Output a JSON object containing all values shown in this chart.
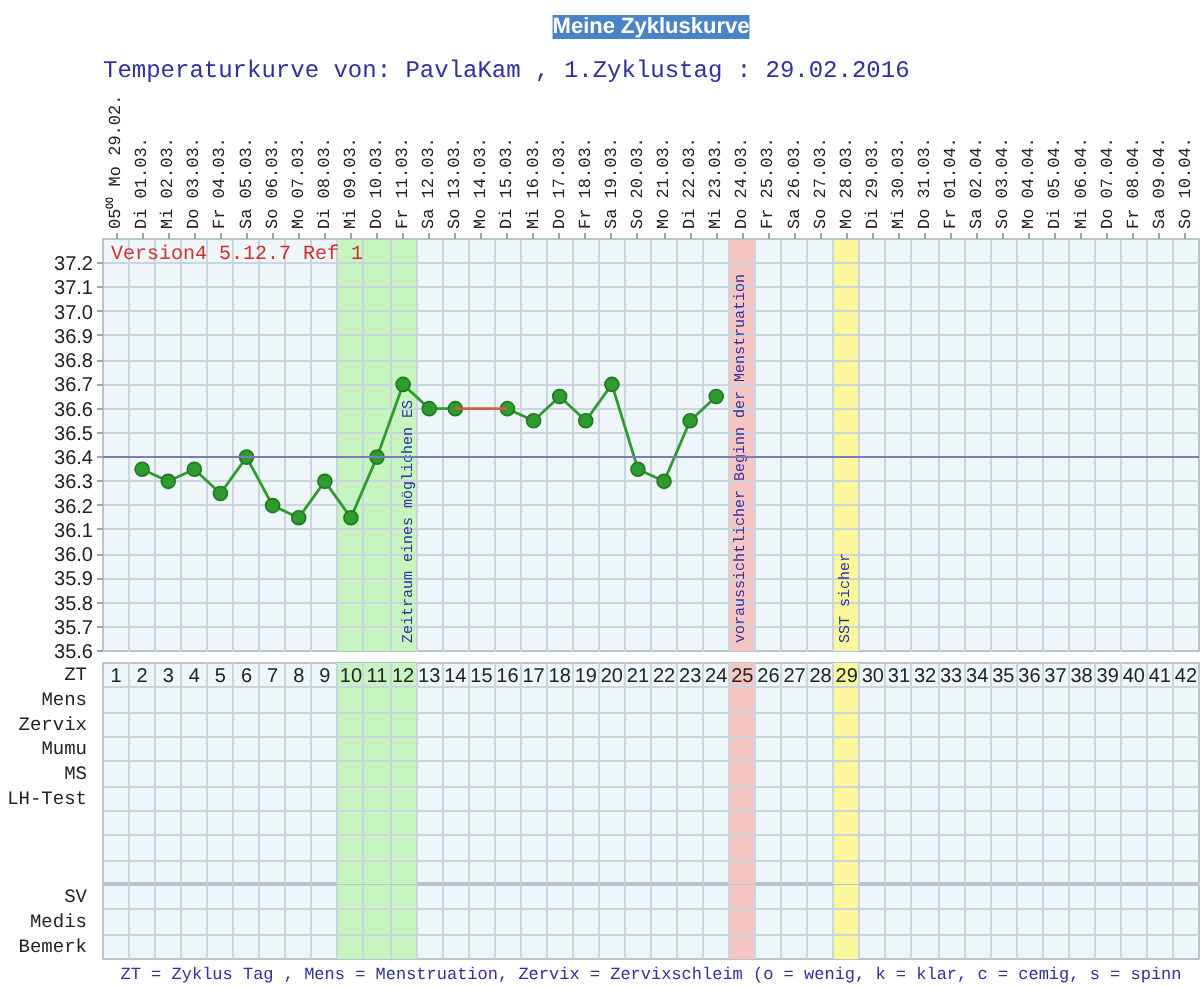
{
  "chart_data": [
    {
      "type": "line",
      "title": "Meine Zykluskurve",
      "subtitle": "Temperaturkurve von: PavlaKam , 1.Zyklustag : 29.02.2016",
      "categories": [
        "05⁰⁰ Mo 29.02.",
        "Di 01.03.",
        "Mi 02.03.",
        "Do 03.03.",
        "Fr 04.03.",
        "Sa 05.03.",
        "So 06.03.",
        "Mo 07.03.",
        "Di 08.03.",
        "Mi 09.03.",
        "Do 10.03.",
        "Fr 11.03.",
        "Sa 12.03.",
        "So 13.03.",
        "Mo 14.03.",
        "Di 15.03.",
        "Mi 16.03.",
        "Do 17.03.",
        "Fr 18.03.",
        "Sa 19.03.",
        "So 20.03.",
        "Mo 21.03.",
        "Di 22.03.",
        "Mi 23.03.",
        "Do 24.03.",
        "Fr 25.03.",
        "Sa 26.03.",
        "So 27.03.",
        "Mo 28.03.",
        "Di 29.03.",
        "Mi 30.03.",
        "Do 31.03.",
        "Fr 01.04.",
        "Sa 02.04.",
        "So 03.04.",
        "Mo 04.04.",
        "Di 05.04.",
        "Mi 06.04.",
        "Do 07.04.",
        "Fr 08.04.",
        "Sa 09.04.",
        "So 10.04."
      ],
      "series": [
        {
          "color": "#2f9a2f",
          "values": [
            null,
            36.35,
            36.3,
            36.35,
            36.25,
            36.4,
            36.2,
            36.15,
            36.3,
            36.15,
            36.4,
            36.7,
            36.6,
            36.6,
            null,
            36.6,
            36.55,
            36.65,
            36.55,
            36.7,
            36.35,
            36.3,
            36.55,
            36.65,
            null,
            null,
            null,
            null,
            null,
            null,
            null,
            null,
            null,
            null,
            null,
            null,
            null,
            null,
            null,
            null,
            null,
            null
          ]
        },
        {
          "type": "line",
          "color": "#d0603c",
          "x": [
            "So 13.03.",
            "Di 15.03."
          ],
          "values": [
            36.6,
            36.6
          ],
          "marker": "none"
        }
      ],
      "marker": "circle",
      "grid": true,
      "ylim": [
        35.6,
        37.3
      ],
      "yticks": [
        35.6,
        35.7,
        35.8,
        35.9,
        {
          "value": 36,
          "label": "36.0"
        },
        36.1,
        36.2,
        36.3,
        36.4,
        36.5,
        36.6,
        36.7,
        36.8,
        36.9,
        {
          "value": 37,
          "label": "37.0"
        },
        37.1,
        37.2
      ],
      "ref_lines": [
        {
          "axis": "y",
          "value": 36.4,
          "color": "#7a7cb8"
        }
      ],
      "bands": [
        {
          "axis": "x",
          "from": "Mi 09.03.",
          "to": "Fr 11.03.",
          "label": "Zeitraum eines möglichen ES",
          "color": "#c6f5c0"
        },
        {
          "axis": "x",
          "from": "Do 24.03.",
          "to": "Do 24.03.",
          "label": "voraussichtlicher Beginn der Menstruation",
          "color": "#f6c6c4"
        },
        {
          "axis": "x",
          "from": "Mo 28.03.",
          "to": "Mo 28.03.",
          "label": "SST sicher",
          "color": "#fbf79c"
        }
      ],
      "annotations": [
        "Version4 5.12.7 Ref 1"
      ]
    },
    {
      "type": "heatmap",
      "grid": true,
      "data_labels": true,
      "categories": [
        null,
        null,
        null,
        null,
        null,
        null,
        null,
        null,
        null,
        null,
        null,
        null,
        null,
        null,
        null,
        null,
        null,
        null,
        null,
        null,
        null,
        null,
        null,
        null,
        null,
        null,
        null,
        null,
        null,
        null,
        null,
        null,
        null,
        null,
        null,
        null,
        null,
        null,
        null,
        null,
        null,
        null
      ],
      "y_categories": [
        "ZT",
        "Mens",
        "Zervix",
        "Mumu",
        "MS",
        "LH-Test"
      ],
      "cells": [
        [
          1,
          2,
          3,
          4,
          5,
          6,
          7,
          8,
          9,
          10,
          11,
          12,
          13,
          14,
          15,
          16,
          17,
          18,
          19,
          20,
          21,
          22,
          23,
          24,
          25,
          26,
          27,
          28,
          29,
          30,
          31,
          32,
          33,
          34,
          35,
          36,
          37,
          38,
          39,
          40,
          41,
          42
        ],
        [
          null,
          null,
          null,
          null,
          null,
          null,
          null,
          null,
          null,
          null,
          null,
          null,
          null,
          null,
          null,
          null,
          null,
          null,
          null,
          null,
          null,
          null,
          null,
          null,
          null,
          null,
          null,
          null,
          null,
          null,
          null,
          null,
          null,
          null,
          null,
          null,
          null,
          null,
          null,
          null,
          null,
          null
        ],
        [
          null,
          null,
          null,
          null,
          null,
          null,
          null,
          null,
          null,
          null,
          null,
          null,
          null,
          null,
          null,
          null,
          null,
          null,
          null,
          null,
          null,
          null,
          null,
          null,
          null,
          null,
          null,
          null,
          null,
          null,
          null,
          null,
          null,
          null,
          null,
          null,
          null,
          null,
          null,
          null,
          null,
          null
        ],
        [
          null,
          null,
          null,
          null,
          null,
          null,
          null,
          null,
          null,
          null,
          null,
          null,
          null,
          null,
          null,
          null,
          null,
          null,
          null,
          null,
          null,
          null,
          null,
          null,
          null,
          null,
          null,
          null,
          null,
          null,
          null,
          null,
          null,
          null,
          null,
          null,
          null,
          null,
          null,
          null,
          null,
          null
        ],
        [
          null,
          null,
          null,
          null,
          null,
          null,
          null,
          null,
          null,
          null,
          null,
          null,
          null,
          null,
          null,
          null,
          null,
          null,
          null,
          null,
          null,
          null,
          null,
          null,
          null,
          null,
          null,
          null,
          null,
          null,
          null,
          null,
          null,
          null,
          null,
          null,
          null,
          null,
          null,
          null,
          null,
          null
        ],
        [
          null,
          null,
          null,
          null,
          null,
          null,
          null,
          null,
          null,
          null,
          null,
          null,
          null,
          null,
          null,
          null,
          null,
          null,
          null,
          null,
          null,
          null,
          null,
          null,
          null,
          null,
          null,
          null,
          null,
          null,
          null,
          null,
          null,
          null,
          null,
          null,
          null,
          null,
          null,
          null,
          null,
          null
        ]
      ]
    },
    {
      "type": "heatmap",
      "grid": true,
      "categories": [
        null,
        null,
        null,
        null,
        null,
        null,
        null,
        null,
        null,
        null,
        null,
        null,
        null,
        null,
        null,
        null,
        null,
        null,
        null,
        null,
        null,
        null,
        null,
        null,
        null,
        null,
        null,
        null,
        null,
        null,
        null,
        null,
        null,
        null,
        null,
        null,
        null,
        null,
        null,
        null,
        null,
        null
      ],
      "y_categories": [
        "SV",
        "Medis",
        "Bemerk"
      ],
      "cells": [
        [
          null,
          null,
          null,
          null,
          null,
          null,
          null,
          null,
          null,
          null,
          null,
          null,
          null,
          null,
          null,
          null,
          null,
          null,
          null,
          null,
          null,
          null,
          null,
          null,
          null,
          null,
          null,
          null,
          null,
          null,
          null,
          null,
          null,
          null,
          null,
          null,
          null,
          null,
          null,
          null,
          null,
          null
        ],
        [
          null,
          null,
          null,
          null,
          null,
          null,
          null,
          null,
          null,
          null,
          null,
          null,
          null,
          null,
          null,
          null,
          null,
          null,
          null,
          null,
          null,
          null,
          null,
          null,
          null,
          null,
          null,
          null,
          null,
          null,
          null,
          null,
          null,
          null,
          null,
          null,
          null,
          null,
          null,
          null,
          null,
          null
        ],
        [
          null,
          null,
          null,
          null,
          null,
          null,
          null,
          null,
          null,
          null,
          null,
          null,
          null,
          null,
          null,
          null,
          null,
          null,
          null,
          null,
          null,
          null,
          null,
          null,
          null,
          null,
          null,
          null,
          null,
          null,
          null,
          null,
          null,
          null,
          null,
          null,
          null,
          null,
          null,
          null,
          null,
          null
        ]
      ],
      "annotations": [
        "ZT = Zyklus Tag , Mens = Menstruation, Zervix = Zervixschleim (o = wenig, k = klar, c = cemig, s = spinn"
      ]
    }
  ]
}
